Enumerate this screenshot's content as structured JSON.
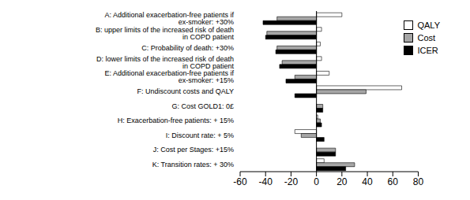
{
  "chart_data": {
    "type": "bar",
    "orientation": "horizontal",
    "categories": [
      "A: Additional exacerbation-free patients if ex-smoker: +30%",
      "B: upper limits of the increased risk of death in COPD patient",
      "C: Probability of death: +30%",
      "D: lower limits of the increased risk of death in COPD patient",
      "E: Additional exacerbation-free patients if ex-smoker: +15%",
      "F: Undiscount costs and QALY",
      "G: Cost GOLD1: 0£",
      "H: Exacerbation-free patients: + 15%",
      "I: Discount rate: + 5%",
      "J: Cost per Stages: +15%",
      "K: Transition rates: + 30%"
    ],
    "series": [
      {
        "name": "QALY",
        "color": "#ffffff",
        "values": [
          20,
          4,
          3,
          4,
          10,
          67,
          0,
          1,
          -17,
          0,
          6
        ]
      },
      {
        "name": "Cost",
        "color": "#a6a6a6",
        "values": [
          -31,
          -39,
          -31,
          -27,
          -17,
          39,
          5,
          3,
          -12,
          15,
          30
        ]
      },
      {
        "name": "ICER",
        "color": "#000000",
        "values": [
          -42,
          -40,
          -32,
          -29,
          -24,
          -17,
          5,
          4,
          6,
          15,
          23
        ]
      }
    ],
    "xlim": [
      -60,
      80
    ],
    "xticks": [
      -60,
      -40,
      -20,
      0,
      20,
      40,
      60,
      80
    ],
    "legend": "upper right",
    "grid": false
  }
}
